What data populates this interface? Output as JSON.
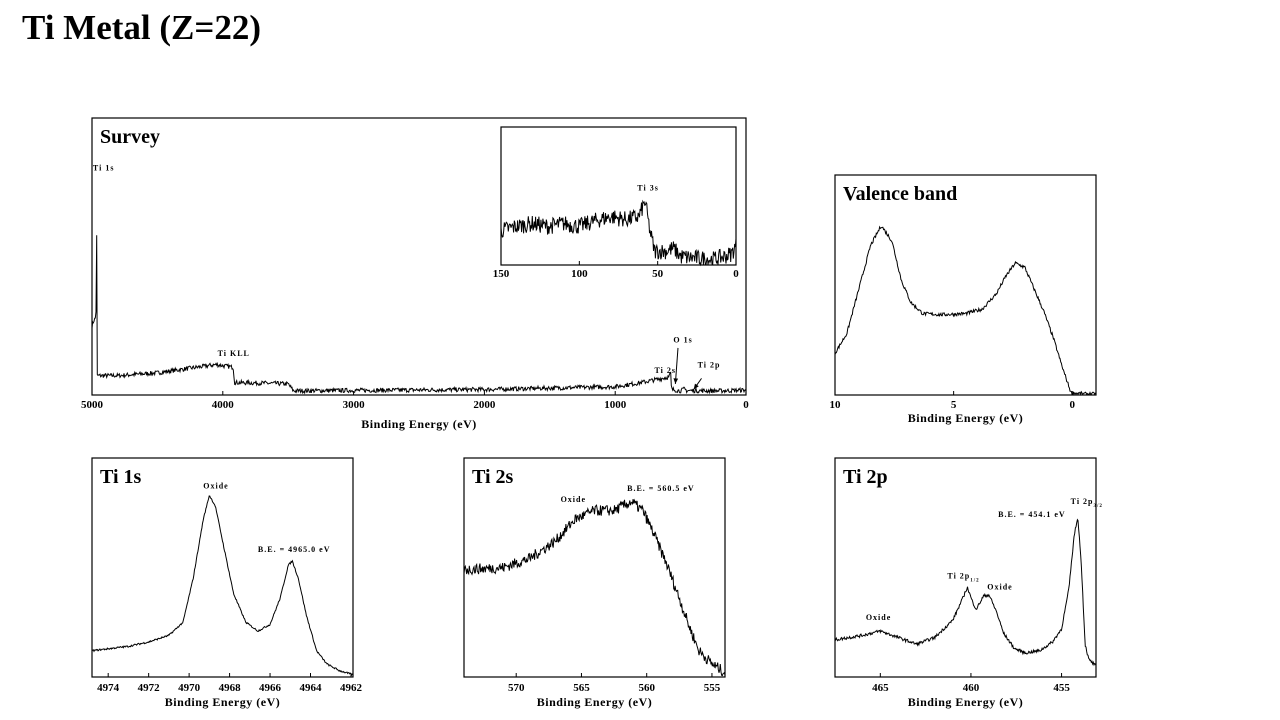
{
  "page": {
    "title": "Ti Metal (Z=22)"
  },
  "chart_data": [
    {
      "id": "survey",
      "type": "line",
      "title": "Survey",
      "xlabel": "Binding Energy (eV)",
      "xlim": [
        5000,
        0
      ],
      "ylim": [
        0,
        100
      ],
      "xticks": [
        5000,
        4000,
        3000,
        2000,
        1000,
        0
      ],
      "noise": 0.8,
      "points": [
        [
          5000,
          25
        ],
        [
          4985,
          27
        ],
        [
          4970,
          28
        ],
        [
          4967,
          40
        ],
        [
          4966,
          30
        ],
        [
          4965,
          83
        ],
        [
          4964,
          45
        ],
        [
          4962,
          7
        ],
        [
          4800,
          7
        ],
        [
          4500,
          8
        ],
        [
          4200,
          10
        ],
        [
          4050,
          11
        ],
        [
          3920,
          10
        ],
        [
          3910,
          4.5
        ],
        [
          3700,
          4.3
        ],
        [
          3500,
          4
        ],
        [
          3460,
          1.5
        ],
        [
          2000,
          2
        ],
        [
          1000,
          3
        ],
        [
          800,
          4.5
        ],
        [
          590,
          6.5
        ],
        [
          575,
          8
        ],
        [
          570,
          2
        ],
        [
          500,
          1.5
        ],
        [
          470,
          2.2
        ],
        [
          455,
          1.6
        ],
        [
          200,
          1.5
        ],
        [
          0,
          1.8
        ]
      ],
      "annotations": [
        {
          "text": "Ti 1s",
          "x": 4993,
          "y": 81
        },
        {
          "text": "Ti KLL",
          "x": 4040,
          "y": 14
        },
        {
          "text": "O 1s",
          "x": 555,
          "y": 19
        },
        {
          "text": "Ti 2s",
          "x": 700,
          "y": 8
        },
        {
          "text": "Ti 2p",
          "x": 370,
          "y": 10
        }
      ],
      "arrows": [
        [
          520,
          17,
          540,
          4
        ],
        [
          340,
          6,
          400,
          2
        ]
      ]
    },
    {
      "id": "survey-inset",
      "type": "line",
      "title": "",
      "xlabel": "",
      "xlim": [
        150,
        0
      ],
      "ylim": [
        0,
        100
      ],
      "xticks": [
        150,
        100,
        50,
        0
      ],
      "noise": 6,
      "points": [
        [
          150,
          25
        ],
        [
          140,
          28
        ],
        [
          130,
          30
        ],
        [
          120,
          28
        ],
        [
          110,
          30
        ],
        [
          100,
          28
        ],
        [
          90,
          32
        ],
        [
          80,
          35
        ],
        [
          70,
          33
        ],
        [
          62,
          35
        ],
        [
          58,
          46
        ],
        [
          55,
          25
        ],
        [
          52,
          10
        ],
        [
          45,
          10
        ],
        [
          40,
          12
        ],
        [
          35,
          6
        ],
        [
          25,
          5
        ],
        [
          15,
          4
        ],
        [
          8,
          6
        ],
        [
          3,
          8
        ],
        [
          0,
          14
        ]
      ],
      "annotations": [
        {
          "text": "Ti 3s",
          "x": 63,
          "y": 54
        }
      ]
    },
    {
      "id": "valence",
      "type": "line",
      "title": "Valence band",
      "xlabel": "Binding Energy (eV)",
      "xlim": [
        10,
        -1
      ],
      "ylim": [
        0,
        100
      ],
      "xticks": [
        10,
        5,
        0
      ],
      "noise": 0.8,
      "points": [
        [
          10,
          19
        ],
        [
          9.5,
          28
        ],
        [
          9,
          48
        ],
        [
          8.5,
          68
        ],
        [
          8.05,
          77
        ],
        [
          7.6,
          70
        ],
        [
          7.2,
          52
        ],
        [
          6.8,
          42
        ],
        [
          6.3,
          37
        ],
        [
          5.5,
          36.5
        ],
        [
          4.5,
          37
        ],
        [
          3.8,
          39
        ],
        [
          3.2,
          46
        ],
        [
          2.8,
          54
        ],
        [
          2.4,
          60
        ],
        [
          2.0,
          58
        ],
        [
          1.6,
          48
        ],
        [
          1.2,
          38
        ],
        [
          0.8,
          26
        ],
        [
          0.4,
          12
        ],
        [
          0.05,
          1
        ],
        [
          -0.5,
          0.5
        ],
        [
          -1,
          0.5
        ]
      ],
      "annotations": []
    },
    {
      "id": "ti1s",
      "type": "line",
      "title": "Ti 1s",
      "xlabel": "Binding Energy (eV)",
      "xlim": [
        4974.8,
        4961.9
      ],
      "ylim": [
        0,
        100
      ],
      "xticks": [
        4974,
        4972,
        4970,
        4968,
        4966,
        4964,
        4962
      ],
      "noise": 0.4,
      "points": [
        [
          4974.8,
          12
        ],
        [
          4973,
          14
        ],
        [
          4972,
          16
        ],
        [
          4971,
          19
        ],
        [
          4970.3,
          25
        ],
        [
          4969.8,
          45
        ],
        [
          4969.3,
          72
        ],
        [
          4969,
          83
        ],
        [
          4968.7,
          78
        ],
        [
          4968.3,
          60
        ],
        [
          4967.8,
          38
        ],
        [
          4967.2,
          25
        ],
        [
          4966.6,
          21
        ],
        [
          4966,
          24
        ],
        [
          4965.5,
          36
        ],
        [
          4965.1,
          51
        ],
        [
          4964.9,
          53
        ],
        [
          4964.6,
          45
        ],
        [
          4964.2,
          28
        ],
        [
          4963.7,
          12
        ],
        [
          4963.2,
          6
        ],
        [
          4962.6,
          3
        ],
        [
          4961.9,
          1
        ]
      ],
      "annotations": [
        {
          "text": "Oxide",
          "x": 4969.3,
          "y": 86
        },
        {
          "text": "B.E. = 4965.0 eV",
          "x": 4966.6,
          "y": 57
        }
      ]
    },
    {
      "id": "ti2s",
      "type": "line",
      "title": "Ti 2s",
      "xlabel": "Binding Energy (eV)",
      "xlim": [
        574,
        554
      ],
      "ylim": [
        0,
        100
      ],
      "xticks": [
        570,
        565,
        560,
        555
      ],
      "noise": 2.5,
      "points": [
        [
          574,
          49
        ],
        [
          571,
          50
        ],
        [
          569,
          54
        ],
        [
          567,
          62
        ],
        [
          565.5,
          72
        ],
        [
          564,
          76
        ],
        [
          562.5,
          76
        ],
        [
          561.2,
          80
        ],
        [
          560.3,
          76
        ],
        [
          559.5,
          66
        ],
        [
          558.5,
          52
        ],
        [
          557.5,
          36
        ],
        [
          556.8,
          24
        ],
        [
          556,
          12
        ],
        [
          555,
          6
        ],
        [
          554,
          2
        ]
      ],
      "annotations": [
        {
          "text": "Oxide",
          "x": 566.6,
          "y": 80
        },
        {
          "text": "B.E. = 560.5 eV",
          "x": 561.5,
          "y": 85
        }
      ]
    },
    {
      "id": "ti2p",
      "type": "line",
      "title": "Ti 2p",
      "xlabel": "Binding Energy (eV)",
      "xlim": [
        467.5,
        453.1
      ],
      "ylim": [
        0,
        100
      ],
      "xticks": [
        465,
        460,
        455
      ],
      "noise": 0.7,
      "points": [
        [
          467.5,
          17
        ],
        [
          466,
          19
        ],
        [
          465,
          21
        ],
        [
          464,
          18
        ],
        [
          463,
          15
        ],
        [
          462,
          18
        ],
        [
          461,
          26
        ],
        [
          460.5,
          35
        ],
        [
          460.2,
          41
        ],
        [
          459.9,
          34
        ],
        [
          459.7,
          31
        ],
        [
          459.3,
          37
        ],
        [
          459,
          37.5
        ],
        [
          458.6,
          30
        ],
        [
          458.2,
          20
        ],
        [
          457.6,
          13
        ],
        [
          457,
          11
        ],
        [
          456.2,
          12
        ],
        [
          455.5,
          16
        ],
        [
          455,
          22
        ],
        [
          454.6,
          40
        ],
        [
          454.3,
          65
        ],
        [
          454.1,
          73
        ],
        [
          453.9,
          50
        ],
        [
          453.7,
          15
        ],
        [
          453.5,
          8
        ],
        [
          453.1,
          5
        ]
      ],
      "annotations": [
        {
          "text": "Oxide",
          "x": 465.8,
          "y": 26
        },
        {
          "text": "Ti 2p",
          "sub": "1/2",
          "x": 461.3,
          "y": 45
        },
        {
          "text": "Oxide",
          "x": 459.1,
          "y": 40
        },
        {
          "text": "B.E. = 454.1 eV",
          "x": 458.5,
          "y": 73
        },
        {
          "text": "Ti 2p",
          "sub": "3/2",
          "x": 454.5,
          "y": 79
        }
      ]
    }
  ]
}
